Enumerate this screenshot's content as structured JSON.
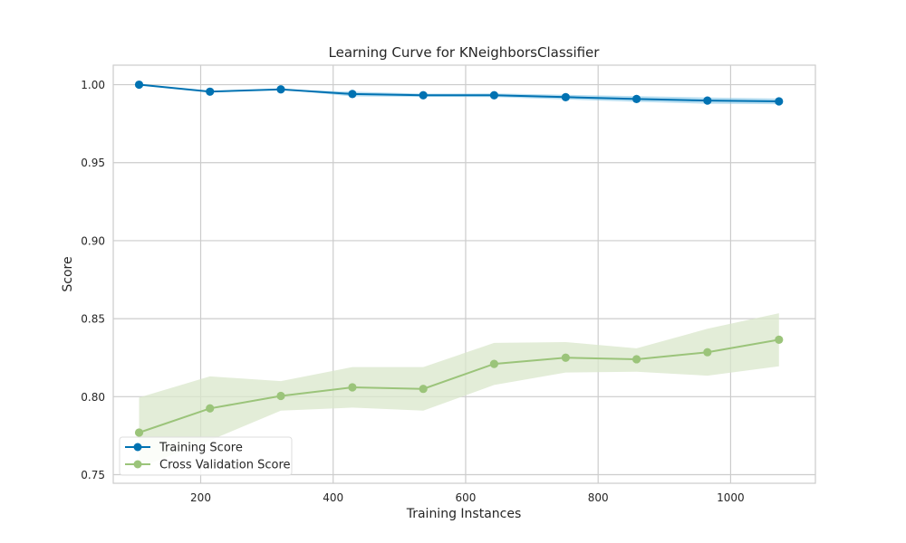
{
  "chart_data": {
    "type": "line",
    "title": "Learning Curve for KNeighborsClassifier",
    "xlabel": "Training Instances",
    "ylabel": "Score",
    "xlim": [
      68,
      1128
    ],
    "ylim": [
      0.7445,
      1.0125
    ],
    "xticks": [
      200,
      400,
      600,
      800,
      1000
    ],
    "xtick_labels": [
      "200",
      "400",
      "600",
      "800",
      "1000"
    ],
    "yticks": [
      0.75,
      0.8,
      0.85,
      0.9,
      0.95,
      1.0
    ],
    "ytick_labels": [
      "0.75",
      "0.80",
      "0.85",
      "0.90",
      "0.95",
      "1.00"
    ],
    "grid": true,
    "legend_position": "lower-left",
    "x": [
      107,
      214,
      321,
      429,
      536,
      643,
      751,
      858,
      965,
      1073
    ],
    "series": [
      {
        "name": "Training Score",
        "color": "#0072B2",
        "band_color": "#7ec3e6",
        "values": [
          1.0,
          0.9955,
          0.997,
          0.994,
          0.9932,
          0.9932,
          0.992,
          0.9908,
          0.9898,
          0.9893
        ],
        "lower": [
          1.0,
          0.9955,
          0.997,
          0.9925,
          0.9922,
          0.992,
          0.9905,
          0.989,
          0.9878,
          0.9875
        ],
        "upper": [
          1.0,
          0.9955,
          0.997,
          0.9955,
          0.9942,
          0.9944,
          0.9935,
          0.9926,
          0.9918,
          0.9911
        ]
      },
      {
        "name": "Cross Validation Score",
        "color": "#9bc47a",
        "band_color": "#d9e7cb",
        "values": [
          0.777,
          0.7925,
          0.8005,
          0.806,
          0.805,
          0.821,
          0.825,
          0.824,
          0.8285,
          0.8365
        ],
        "lower": [
          0.7545,
          0.772,
          0.791,
          0.793,
          0.791,
          0.8075,
          0.8155,
          0.816,
          0.8135,
          0.8195
        ],
        "upper": [
          0.7995,
          0.813,
          0.81,
          0.819,
          0.819,
          0.8345,
          0.835,
          0.831,
          0.8435,
          0.8535
        ]
      }
    ]
  }
}
